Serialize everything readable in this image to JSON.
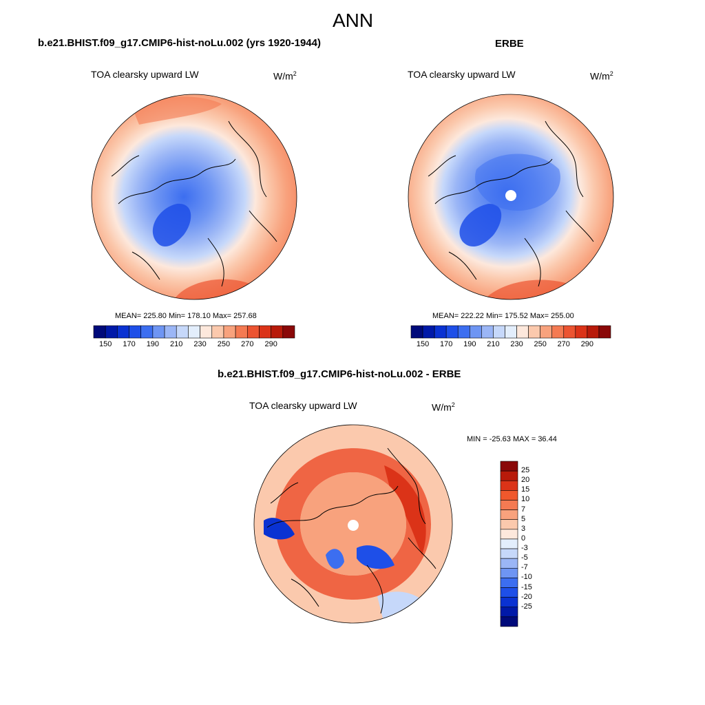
{
  "figure": {
    "title": "ANN",
    "panels": [
      {
        "id": "model",
        "title": "b.e21.BHIST.f09_g17.CMIP6-hist-noLu.002 (yrs 1920-1944)",
        "variable": "TOA clearsky upward LW",
        "units_base": "W/m",
        "units_exp": "2",
        "stats": "MEAN= 225.80  Min= 178.10  Max= 257.68",
        "stat_values": {
          "mean": 225.8,
          "min": 178.1,
          "max": 257.68
        }
      },
      {
        "id": "obs",
        "title": "ERBE",
        "variable": "TOA clearsky upward LW",
        "units_base": "W/m",
        "units_exp": "2",
        "stats": "MEAN= 222.22  Min= 175.52  Max= 255.00",
        "stat_values": {
          "mean": 222.22,
          "min": 175.52,
          "max": 255.0
        }
      },
      {
        "id": "diff",
        "title": "b.e21.BHIST.f09_g17.CMIP6-hist-noLu.002 - ERBE",
        "variable": "TOA clearsky upward LW",
        "units_base": "W/m",
        "units_exp": "2",
        "stats": "MIN = -25.63 MAX =  36.44",
        "stat_values": {
          "min": -25.63,
          "max": 36.44
        }
      }
    ]
  },
  "colorbars": {
    "abs": {
      "colors": [
        "#000a7a",
        "#0019a8",
        "#0a32d2",
        "#1e4fe8",
        "#3c6ef0",
        "#6e95f3",
        "#9bb6f6",
        "#c6d8fa",
        "#e3eefc",
        "#fde8dc",
        "#fbc9ad",
        "#f8a27d",
        "#f47a52",
        "#ec5431",
        "#db3318",
        "#b81a0a",
        "#8a0808"
      ],
      "tick_labels": [
        "150",
        "170",
        "190",
        "210",
        "230",
        "250",
        "270",
        "290"
      ]
    },
    "diff": {
      "colors": [
        "#8a0808",
        "#b81a0a",
        "#db3318",
        "#f0582c",
        "#f47a52",
        "#f8a27d",
        "#fbc9ad",
        "#fde8dc",
        "#e3eefc",
        "#c6d8fa",
        "#9bb6f6",
        "#6e95f3",
        "#3c6ef0",
        "#1e4fe8",
        "#0a32d2",
        "#0019a8",
        "#000a7a"
      ],
      "tick_labels": [
        "25",
        "20",
        "15",
        "10",
        "7",
        "5",
        "3",
        "0",
        "-3",
        "-5",
        "-7",
        "-10",
        "-15",
        "-20",
        "-25"
      ]
    }
  }
}
